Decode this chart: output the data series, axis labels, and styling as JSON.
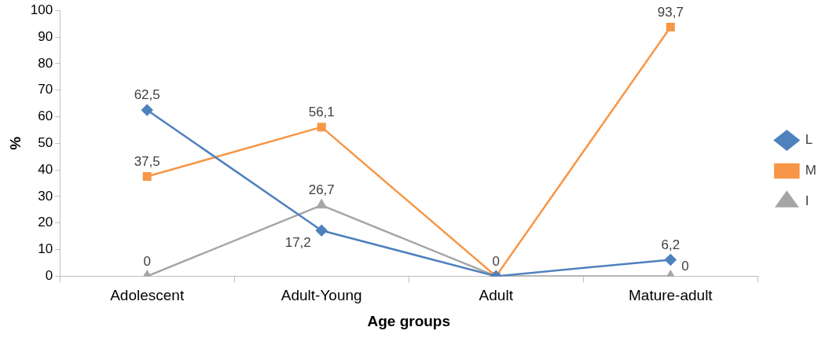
{
  "chart_data": {
    "type": "line",
    "xlabel": "Age groups",
    "ylabel": "%",
    "categories": [
      "Adolescent",
      "Adult-Young",
      "Adult",
      "Mature-adult"
    ],
    "ylim": [
      0,
      100
    ],
    "yticks": [
      0,
      10,
      20,
      30,
      40,
      50,
      60,
      70,
      80,
      90,
      100
    ],
    "grid": false,
    "legend": "right",
    "series": [
      {
        "name": "L",
        "color": "#4f81bd",
        "marker": "diamond",
        "values": [
          62.5,
          17.2,
          0,
          6.2
        ],
        "value_labels": [
          "62,5",
          "17,2",
          null,
          "6,2"
        ]
      },
      {
        "name": "M",
        "color": "#f79646",
        "marker": "square",
        "values": [
          37.5,
          56.1,
          0,
          93.7
        ],
        "value_labels": [
          "37,5",
          "56,1",
          null,
          "93,7"
        ]
      },
      {
        "name": "I",
        "color": "#a5a5a5",
        "marker": "triangle",
        "values": [
          0,
          26.7,
          0,
          0
        ],
        "value_labels": [
          "0",
          "26,7",
          "0",
          "0"
        ]
      }
    ]
  }
}
